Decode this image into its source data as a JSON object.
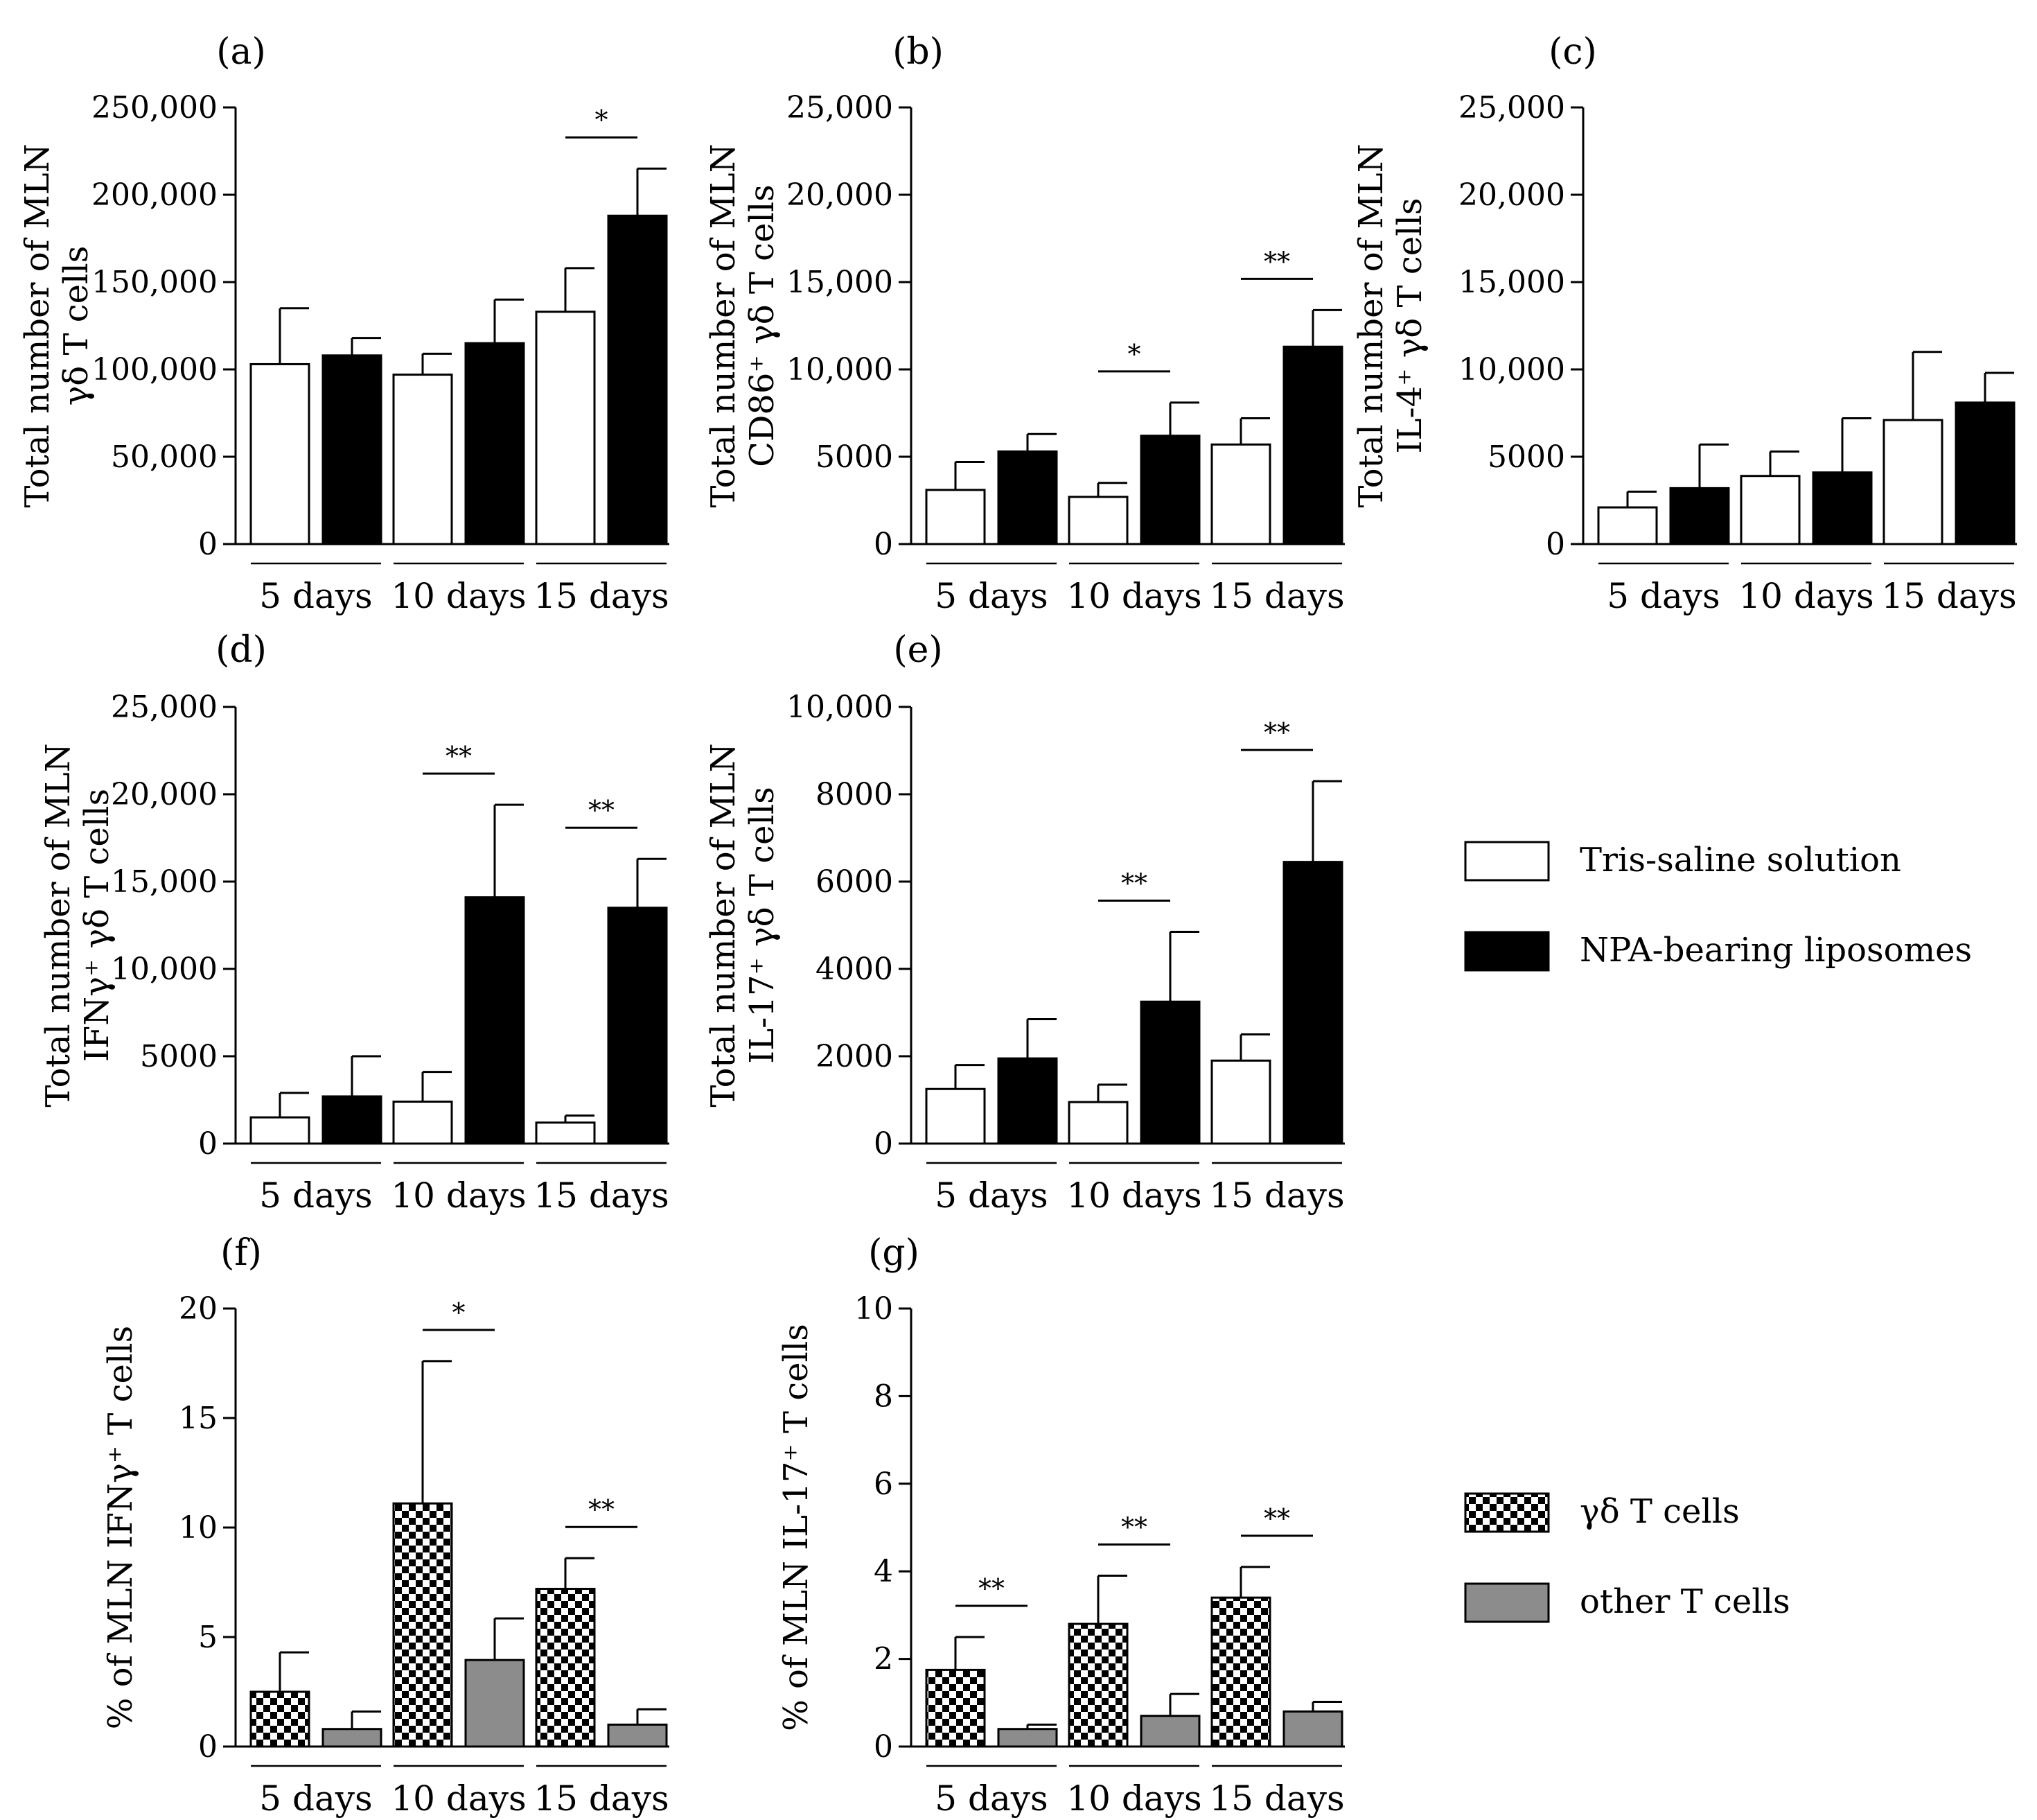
{
  "chart_data": [
    {
      "type": "bar",
      "panel": "(a)",
      "ylabel_lines": [
        "Total number of MLN",
        "γδ T cells"
      ],
      "yticks": [
        "0",
        "50,000",
        "100,000",
        "150,000",
        "200,000",
        "250,000"
      ],
      "ylim": [
        0,
        250000
      ],
      "categories": [
        "5 days",
        "10 days",
        "15 days"
      ],
      "series": [
        {
          "name": "Tris-saline solution",
          "style": "white",
          "values": [
            103000,
            97000,
            133000
          ],
          "errors": [
            32000,
            12000,
            25000
          ]
        },
        {
          "name": "NPA-bearing liposomes",
          "style": "black",
          "values": [
            108000,
            115000,
            188000
          ],
          "errors": [
            10000,
            25000,
            27000
          ]
        }
      ],
      "significance": [
        {
          "category": 2,
          "label": "*"
        }
      ]
    },
    {
      "type": "bar",
      "panel": "(b)",
      "ylabel_lines": [
        "Total number of MLN",
        "CD86⁺ γδ T cells"
      ],
      "yticks": [
        "0",
        "5000",
        "10,000",
        "15,000",
        "20,000",
        "25,000"
      ],
      "ylim": [
        0,
        25000
      ],
      "categories": [
        "5 days",
        "10 days",
        "15 days"
      ],
      "series": [
        {
          "name": "Tris-saline solution",
          "style": "white",
          "values": [
            3100,
            2700,
            5700
          ],
          "errors": [
            1600,
            800,
            1500
          ]
        },
        {
          "name": "NPA-bearing liposomes",
          "style": "black",
          "values": [
            5300,
            6200,
            11300
          ],
          "errors": [
            1000,
            1900,
            2100
          ]
        }
      ],
      "significance": [
        {
          "category": 1,
          "label": "*"
        },
        {
          "category": 2,
          "label": "**"
        }
      ]
    },
    {
      "type": "bar",
      "panel": "(c)",
      "ylabel_lines": [
        "Total number of MLN",
        "IL-4⁺ γδ T cells"
      ],
      "yticks": [
        "0",
        "5000",
        "10,000",
        "15,000",
        "20,000",
        "25,000"
      ],
      "ylim": [
        0,
        25000
      ],
      "categories": [
        "5 days",
        "10 days",
        "15 days"
      ],
      "series": [
        {
          "name": "Tris-saline solution",
          "style": "white",
          "values": [
            2100,
            3900,
            7100
          ],
          "errors": [
            900,
            1400,
            3900
          ]
        },
        {
          "name": "NPA-bearing liposomes",
          "style": "black",
          "values": [
            3200,
            4100,
            8100
          ],
          "errors": [
            2500,
            3100,
            1700
          ]
        }
      ],
      "significance": []
    },
    {
      "type": "bar",
      "panel": "(d)",
      "ylabel_lines": [
        "Total number of MLN",
        "IFNγ⁺ γδ T cells"
      ],
      "yticks": [
        "0",
        "5000",
        "10,000",
        "15,000",
        "20,000",
        "25,000"
      ],
      "ylim": [
        0,
        25000
      ],
      "categories": [
        "5 days",
        "10 days",
        "15 days"
      ],
      "series": [
        {
          "name": "Tris-saline solution",
          "style": "white",
          "values": [
            1500,
            2400,
            1200
          ],
          "errors": [
            1400,
            1700,
            400
          ]
        },
        {
          "name": "NPA-bearing liposomes",
          "style": "black",
          "values": [
            2700,
            14100,
            13500
          ],
          "errors": [
            2300,
            5300,
            2800
          ]
        }
      ],
      "significance": [
        {
          "category": 1,
          "label": "**"
        },
        {
          "category": 2,
          "label": "**"
        }
      ]
    },
    {
      "type": "bar",
      "panel": "(e)",
      "ylabel_lines": [
        "Total number of MLN",
        "IL-17⁺ γδ T cells"
      ],
      "yticks": [
        "0",
        "2000",
        "4000",
        "6000",
        "8000",
        "10,000"
      ],
      "ylim": [
        0,
        10000
      ],
      "categories": [
        "5 days",
        "10 days",
        "15 days"
      ],
      "series": [
        {
          "name": "Tris-saline solution",
          "style": "white",
          "values": [
            1250,
            950,
            1900
          ],
          "errors": [
            550,
            400,
            600
          ]
        },
        {
          "name": "NPA-bearing liposomes",
          "style": "black",
          "values": [
            1950,
            3250,
            6450
          ],
          "errors": [
            900,
            1600,
            1850
          ]
        }
      ],
      "significance": [
        {
          "category": 1,
          "label": "**"
        },
        {
          "category": 2,
          "label": "**"
        }
      ]
    },
    {
      "type": "bar",
      "panel": "(f)",
      "ylabel_lines": [
        "% of MLN IFNγ⁺ T cells"
      ],
      "yticks": [
        "0",
        "5",
        "10",
        "15",
        "20"
      ],
      "ylim": [
        0,
        20
      ],
      "categories": [
        "5 days",
        "10 days",
        "15 days"
      ],
      "series": [
        {
          "name": "γδ T cells",
          "style": "checker",
          "values": [
            2.5,
            11.1,
            7.2
          ],
          "errors": [
            1.8,
            6.5,
            1.4
          ]
        },
        {
          "name": "other T cells",
          "style": "grey",
          "values": [
            0.8,
            3.95,
            1.0
          ],
          "errors": [
            0.8,
            1.9,
            0.7
          ]
        }
      ],
      "significance": [
        {
          "category": 1,
          "label": "*"
        },
        {
          "category": 2,
          "label": "**"
        }
      ]
    },
    {
      "type": "bar",
      "panel": "(g)",
      "ylabel_lines": [
        "% of MLN IL-17⁺ T cells"
      ],
      "yticks": [
        "0",
        "2",
        "4",
        "6",
        "8",
        "10"
      ],
      "ylim": [
        0,
        10
      ],
      "categories": [
        "5 days",
        "10 days",
        "15 days"
      ],
      "series": [
        {
          "name": "γδ T cells",
          "style": "checker",
          "values": [
            1.75,
            2.8,
            3.4
          ],
          "errors": [
            0.75,
            1.1,
            0.7
          ]
        },
        {
          "name": "other T cells",
          "style": "grey",
          "values": [
            0.4,
            0.7,
            0.8
          ],
          "errors": [
            0.1,
            0.5,
            0.22
          ]
        }
      ],
      "significance": [
        {
          "category": 0,
          "label": "**"
        },
        {
          "category": 1,
          "label": "**"
        },
        {
          "category": 2,
          "label": "**"
        }
      ]
    }
  ],
  "legends": [
    {
      "entries": [
        {
          "label": "Tris-saline solution",
          "style": "white"
        },
        {
          "label": "NPA-bearing liposomes",
          "style": "black"
        }
      ]
    },
    {
      "entries": [
        {
          "label": "γδ T cells",
          "style": "checker"
        },
        {
          "label": "other T cells",
          "style": "grey"
        }
      ]
    }
  ]
}
